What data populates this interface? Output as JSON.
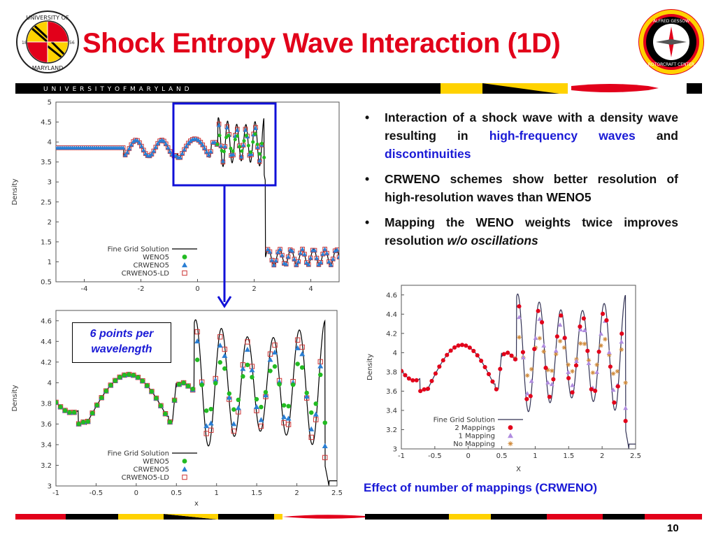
{
  "slide": {
    "title": "Shock Entropy Wave Interaction (1D)",
    "banner_text": "U N I V E R S I T Y   O F   M A R Y L A N D",
    "page_number": "10",
    "logo_left_text": "UNIVERSITY OF MARYLAND 18 56",
    "logo_right_text": "ALFRED GESSOW ROTORCRAFT CENTER",
    "colors": {
      "title": "#e2001a",
      "highlight": "#1a1ad6",
      "md_red": "#e2001a",
      "md_gold": "#ffd200",
      "black": "#000000"
    }
  },
  "bullets": [
    {
      "parts": [
        {
          "t": "Interaction of a shock wave with a density wave resulting in "
        },
        {
          "t": "high-frequency waves",
          "hl": true
        },
        {
          "t": " and "
        },
        {
          "t": "discontinuities",
          "hl": true
        }
      ]
    },
    {
      "parts": [
        {
          "t": "CRWENO schemes show better resolution of high-resolution waves than WENO5"
        }
      ]
    },
    {
      "parts": [
        {
          "t": "Mapping the WENO weights twice improves resolution "
        },
        {
          "t": "w/o oscillations",
          "it": true
        }
      ]
    }
  ],
  "annotation": {
    "line1": "6 points per",
    "line2": "wavelength"
  },
  "caption": "Effect of number of mappings (CRWENO)",
  "chart_data": [
    {
      "type": "line",
      "xlabel": "",
      "ylabel": "Density",
      "xlim": [
        -5,
        5
      ],
      "ylim": [
        0.5,
        5
      ],
      "xticks": [
        "-4",
        "-2",
        "0",
        "2",
        "4"
      ],
      "yticks": [
        "0.5",
        "1",
        "1.5",
        "2",
        "2.5",
        "3",
        "3.5",
        "4",
        "4.5",
        "5"
      ],
      "legend": [
        "Fine Grid Solution",
        "WENO5",
        "CRWENO5",
        "CRWENO5-LD"
      ],
      "legend_position": "bottom-left",
      "series": [
        {
          "name": "Fine Grid Solution",
          "kind": "line",
          "color": "#000000"
        },
        {
          "name": "WENO5",
          "kind": "circle",
          "color": "#22bb22"
        },
        {
          "name": "CRWENO5",
          "kind": "triangle",
          "color": "#2a7fd4"
        },
        {
          "name": "CRWENO5-LD",
          "kind": "square",
          "color": "#cc3333"
        }
      ],
      "shock_x": 2.4,
      "zoom_box_x": [
        -0.8,
        2.85
      ],
      "zoom_box_y": [
        2.95,
        4.95
      ]
    },
    {
      "type": "line",
      "xlabel": "x",
      "ylabel": "Density",
      "xlim": [
        -1,
        2.5
      ],
      "ylim": [
        3,
        4.7
      ],
      "xticks": [
        "-1",
        "-0.5",
        "0",
        "0.5",
        "1",
        "1.5",
        "2",
        "2.5"
      ],
      "yticks": [
        "3",
        "3.2",
        "3.4",
        "3.6",
        "3.8",
        "4",
        "4.2",
        "4.4",
        "4.6"
      ],
      "legend": [
        "Fine Grid Solution",
        "WENO5",
        "CRWENO5",
        "CRWENO5-LD"
      ],
      "legend_position": "bottom-right",
      "series": [
        {
          "name": "Fine Grid Solution",
          "kind": "line",
          "color": "#000000"
        },
        {
          "name": "WENO5",
          "kind": "circle",
          "color": "#22bb22"
        },
        {
          "name": "CRWENO5",
          "kind": "triangle",
          "color": "#2a7fd4"
        },
        {
          "name": "CRWENO5-LD",
          "kind": "square",
          "color": "#cc3333"
        }
      ]
    },
    {
      "type": "line",
      "xlabel": "X",
      "ylabel": "Density",
      "xlim": [
        -1,
        2.5
      ],
      "ylim": [
        3,
        4.7
      ],
      "xticks": [
        "-1",
        "-0.5",
        "0",
        "0.5",
        "1",
        "1.5",
        "2",
        "2.5"
      ],
      "yticks": [
        "3",
        "3.2",
        "3.4",
        "3.6",
        "3.8",
        "4",
        "4.2",
        "4.4",
        "4.6"
      ],
      "legend": [
        "Fine Grid Solution",
        "2 Mappings",
        "1 Mapping",
        "No Mapping"
      ],
      "legend_position": "bottom-right",
      "series": [
        {
          "name": "Fine Grid Solution",
          "kind": "line",
          "color": "#333355"
        },
        {
          "name": "2 Mappings",
          "kind": "circle",
          "color": "#e2001a"
        },
        {
          "name": "1 Mapping",
          "kind": "triangle",
          "color": "#b08ce0"
        },
        {
          "name": "No Mapping",
          "kind": "star",
          "color": "#d08a3a"
        }
      ]
    }
  ]
}
